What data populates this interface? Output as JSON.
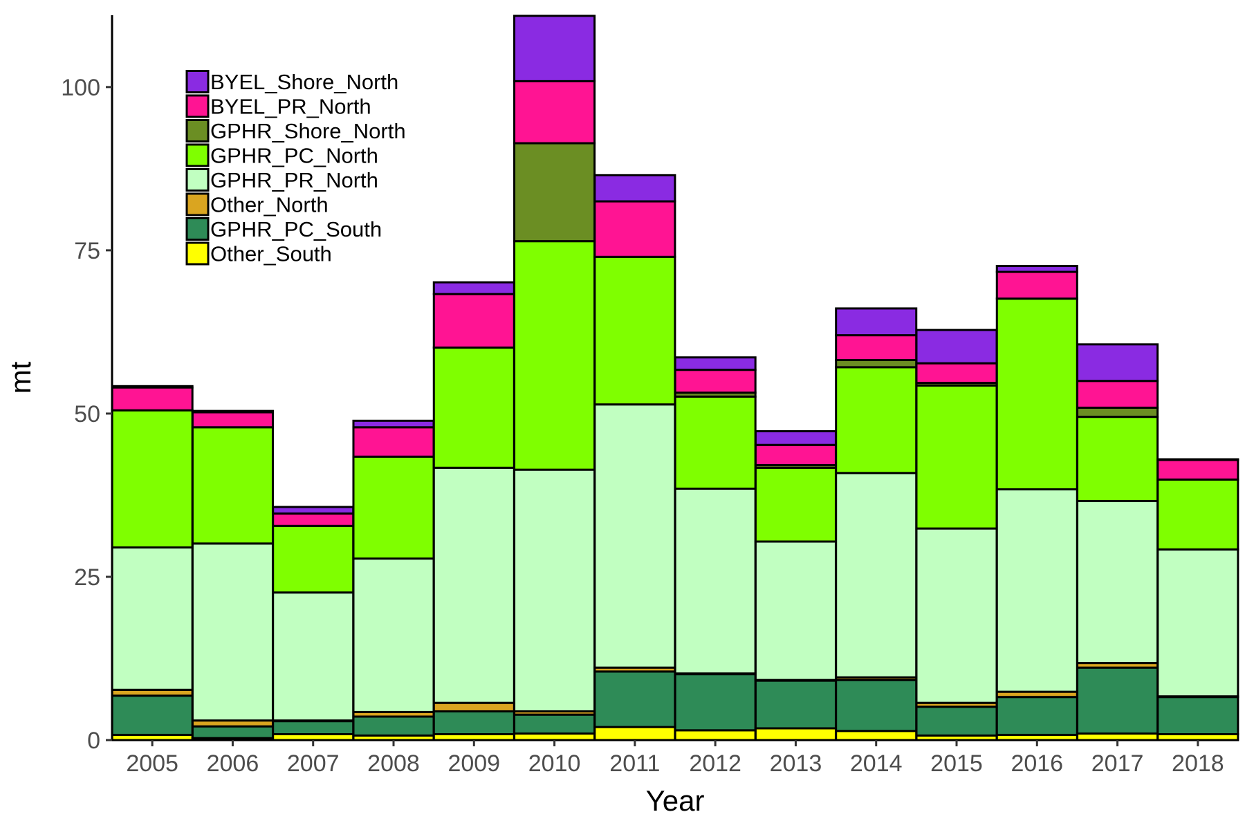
{
  "chart_data": {
    "type": "bar",
    "stacked": true,
    "xlabel": "Year",
    "ylabel": "mt",
    "ylim": [
      0,
      111
    ],
    "yticks": [
      0,
      25,
      50,
      75,
      100
    ],
    "categories": [
      "2005",
      "2006",
      "2007",
      "2008",
      "2009",
      "2010",
      "2011",
      "2012",
      "2013",
      "2014",
      "2015",
      "2016",
      "2017",
      "2018"
    ],
    "legend_position": "top-left",
    "series": [
      {
        "name": "Other_South",
        "color": "#ffff00",
        "values": [
          0.8,
          0.3,
          0.9,
          0.7,
          0.9,
          1.0,
          2.0,
          1.5,
          1.8,
          1.4,
          0.7,
          0.8,
          1.0,
          0.9
        ]
      },
      {
        "name": "GPHR_PC_South",
        "color": "#2e8b57",
        "values": [
          6.0,
          1.8,
          2.0,
          2.9,
          3.5,
          2.9,
          8.5,
          8.6,
          7.3,
          7.8,
          4.4,
          5.8,
          10.1,
          5.7
        ]
      },
      {
        "name": "Other_North",
        "color": "#daa520",
        "values": [
          0.9,
          0.9,
          0.1,
          0.7,
          1.3,
          0.5,
          0.6,
          0.1,
          0.1,
          0.4,
          0.6,
          0.8,
          0.7,
          0.1
        ]
      },
      {
        "name": "GPHR_PR_North",
        "color": "#c1ffc1",
        "values": [
          21.8,
          27.1,
          19.6,
          23.5,
          36.0,
          37.0,
          40.3,
          28.3,
          21.2,
          31.3,
          26.7,
          31.0,
          24.8,
          22.5
        ]
      },
      {
        "name": "GPHR_PC_North",
        "color": "#7fff00",
        "values": [
          21.0,
          17.8,
          10.2,
          15.6,
          18.4,
          35.0,
          22.6,
          14.1,
          11.3,
          16.2,
          21.9,
          29.2,
          12.9,
          10.7
        ]
      },
      {
        "name": "GPHR_Shore_North",
        "color": "#6b8e23",
        "values": [
          0.0,
          0.0,
          0.0,
          0.0,
          0.0,
          15.0,
          0.0,
          0.6,
          0.4,
          1.1,
          0.4,
          0.0,
          1.4,
          0.0
        ]
      },
      {
        "name": "BYEL_PR_North",
        "color": "#ff1493",
        "values": [
          3.5,
          2.3,
          1.9,
          4.5,
          8.2,
          9.5,
          8.5,
          3.5,
          3.1,
          3.8,
          3.0,
          4.1,
          4.1,
          3.0
        ]
      },
      {
        "name": "BYEL_Shore_North",
        "color": "#8a2be2",
        "values": [
          0.2,
          0.2,
          1.0,
          1.0,
          1.8,
          10.0,
          4.0,
          1.9,
          2.1,
          4.1,
          5.1,
          0.9,
          5.6,
          0.1
        ]
      }
    ]
  }
}
